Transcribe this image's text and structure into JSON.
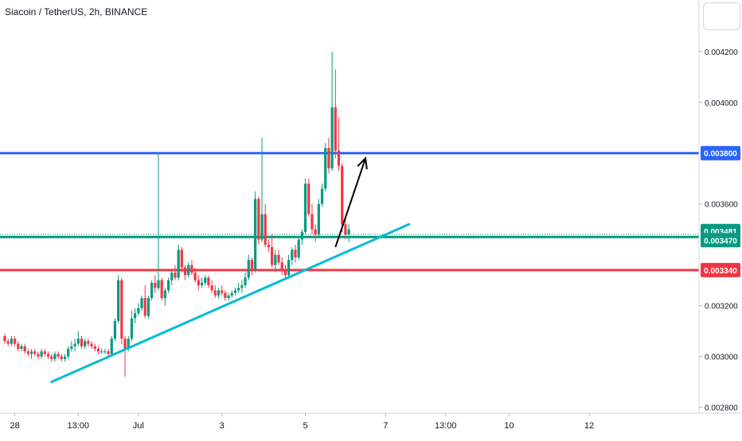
{
  "header": {
    "title": "Siacoin / TetherUS, 2h, BINANCE"
  },
  "chart_data": {
    "type": "candlestick",
    "title": "Siacoin / TetherUS, 2h, BINANCE",
    "ylim": [
      0.00278,
      0.00424
    ],
    "xlim": [
      0,
      210
    ],
    "y_ticks": [
      "0.002800",
      "0.003000",
      "0.003200",
      "0.003600",
      "0.004000",
      "0.004200"
    ],
    "x_ticks": [
      {
        "label": "28",
        "i": 3
      },
      {
        "label": "13:00",
        "i": 22
      },
      {
        "label": "Jul",
        "i": 40
      },
      {
        "label": "3",
        "i": 65
      },
      {
        "label": "5",
        "i": 90
      },
      {
        "label": "7",
        "i": 114
      },
      {
        "label": "13:00",
        "i": 132
      },
      {
        "label": "10",
        "i": 151
      },
      {
        "label": "12",
        "i": 175
      }
    ],
    "horizontal_levels": [
      {
        "name": "resistance",
        "value": 0.0038,
        "label": "0.003800",
        "color": "#2962ff"
      },
      {
        "name": "last-price",
        "value": 0.003481,
        "label": "0.003481",
        "color": "#089981"
      },
      {
        "name": "support-green",
        "value": 0.00347,
        "label": "0.003470",
        "color": "#089981"
      },
      {
        "name": "support-red",
        "value": 0.00334,
        "label": "0.003340",
        "color": "#f23645"
      }
    ],
    "trendline": {
      "from": {
        "i": 14,
        "price": 0.0029
      },
      "to": {
        "i": 121,
        "price": 0.00352
      },
      "color": "#00bcd4"
    },
    "arrow": {
      "from": {
        "i": 99,
        "price": 0.00343
      },
      "to": {
        "i": 108,
        "price": 0.00378
      },
      "color": "#000000"
    },
    "candles": [
      [
        0.00308,
        0.00309,
        0.00305,
        0.00306
      ],
      [
        0.00306,
        0.00307,
        0.00304,
        0.00305
      ],
      [
        0.00305,
        0.00308,
        0.00304,
        0.00307
      ],
      [
        0.00307,
        0.00308,
        0.00304,
        0.00305
      ],
      [
        0.00305,
        0.00306,
        0.00302,
        0.00303
      ],
      [
        0.00303,
        0.00305,
        0.00302,
        0.00304
      ],
      [
        0.00304,
        0.00305,
        0.00301,
        0.00302
      ],
      [
        0.00302,
        0.00303,
        0.003,
        0.00301
      ],
      [
        0.00301,
        0.00303,
        0.00299,
        0.00302
      ],
      [
        0.00302,
        0.00303,
        0.003,
        0.00301
      ],
      [
        0.00301,
        0.00302,
        0.00299,
        0.003
      ],
      [
        0.003,
        0.00303,
        0.00299,
        0.00302
      ],
      [
        0.00302,
        0.00303,
        0.003,
        0.00301
      ],
      [
        0.00301,
        0.00302,
        0.00299,
        0.003
      ],
      [
        0.003,
        0.00301,
        0.00298,
        0.00299
      ],
      [
        0.00299,
        0.00302,
        0.00298,
        0.00301
      ],
      [
        0.00301,
        0.00302,
        0.00299,
        0.003
      ],
      [
        0.003,
        0.00301,
        0.00298,
        0.00299
      ],
      [
        0.00299,
        0.00301,
        0.00298,
        0.003
      ],
      [
        0.003,
        0.00304,
        0.00299,
        0.00303
      ],
      [
        0.00303,
        0.00306,
        0.00302,
        0.00304
      ],
      [
        0.00304,
        0.00307,
        0.00302,
        0.00305
      ],
      [
        0.00305,
        0.0031,
        0.00304,
        0.00307
      ],
      [
        0.00307,
        0.00308,
        0.00303,
        0.00304
      ],
      [
        0.00304,
        0.00307,
        0.00303,
        0.00306
      ],
      [
        0.00306,
        0.00307,
        0.00304,
        0.00305
      ],
      [
        0.00305,
        0.00306,
        0.00303,
        0.00304
      ],
      [
        0.00304,
        0.00305,
        0.00302,
        0.00303
      ],
      [
        0.00303,
        0.00304,
        0.00301,
        0.00302
      ],
      [
        0.00302,
        0.00303,
        0.00301,
        0.00302
      ],
      [
        0.00302,
        0.00303,
        0.00301,
        0.00302
      ],
      [
        0.00302,
        0.00303,
        0.003,
        0.00301
      ],
      [
        0.00301,
        0.00308,
        0.003,
        0.00307
      ],
      [
        0.00307,
        0.00315,
        0.00306,
        0.00314
      ],
      [
        0.00314,
        0.00332,
        0.00313,
        0.0033
      ],
      [
        0.0033,
        0.00331,
        0.00305,
        0.00307
      ],
      [
        0.00307,
        0.00308,
        0.00292,
        0.00303
      ],
      [
        0.00303,
        0.00308,
        0.00302,
        0.00307
      ],
      [
        0.00307,
        0.00318,
        0.00306,
        0.00315
      ],
      [
        0.00315,
        0.00319,
        0.00313,
        0.00317
      ],
      [
        0.00317,
        0.00321,
        0.00316,
        0.00319
      ],
      [
        0.00319,
        0.00324,
        0.00318,
        0.00323
      ],
      [
        0.00323,
        0.00328,
        0.00315,
        0.00316
      ],
      [
        0.00316,
        0.00324,
        0.00315,
        0.00323
      ],
      [
        0.00323,
        0.0033,
        0.00322,
        0.00329
      ],
      [
        0.00329,
        0.00332,
        0.00325,
        0.00327
      ],
      [
        0.00327,
        0.0038,
        0.00326,
        0.0033
      ],
      [
        0.0033,
        0.00331,
        0.00322,
        0.00323
      ],
      [
        0.00323,
        0.00327,
        0.0032,
        0.00326
      ],
      [
        0.00326,
        0.00331,
        0.00325,
        0.0033
      ],
      [
        0.0033,
        0.00334,
        0.00328,
        0.00333
      ],
      [
        0.00333,
        0.00336,
        0.0033,
        0.00331
      ],
      [
        0.00331,
        0.00344,
        0.0033,
        0.00342
      ],
      [
        0.00342,
        0.00343,
        0.00333,
        0.00335
      ],
      [
        0.00335,
        0.00336,
        0.0033,
        0.00332
      ],
      [
        0.00332,
        0.00337,
        0.00331,
        0.00336
      ],
      [
        0.00336,
        0.00338,
        0.00332,
        0.00333
      ],
      [
        0.00333,
        0.00335,
        0.00329,
        0.0033
      ],
      [
        0.0033,
        0.00332,
        0.00326,
        0.00328
      ],
      [
        0.00328,
        0.00331,
        0.00327,
        0.00329
      ],
      [
        0.00329,
        0.00332,
        0.00328,
        0.00331
      ],
      [
        0.00331,
        0.00332,
        0.00327,
        0.00328
      ],
      [
        0.00328,
        0.0033,
        0.00325,
        0.00326
      ],
      [
        0.00326,
        0.00328,
        0.00323,
        0.00324
      ],
      [
        0.00324,
        0.00327,
        0.00323,
        0.00326
      ],
      [
        0.00326,
        0.00328,
        0.00324,
        0.00325
      ],
      [
        0.00325,
        0.00326,
        0.00322,
        0.00323
      ],
      [
        0.00323,
        0.00325,
        0.00322,
        0.00324
      ],
      [
        0.00324,
        0.00326,
        0.00323,
        0.00325
      ],
      [
        0.00325,
        0.00327,
        0.00324,
        0.00326
      ],
      [
        0.00326,
        0.00329,
        0.00325,
        0.00327
      ],
      [
        0.00327,
        0.0033,
        0.00325,
        0.00328
      ],
      [
        0.00328,
        0.00333,
        0.00327,
        0.00331
      ],
      [
        0.00331,
        0.0034,
        0.0033,
        0.00338
      ],
      [
        0.00338,
        0.00339,
        0.00332,
        0.00334
      ],
      [
        0.00334,
        0.00365,
        0.00333,
        0.00362
      ],
      [
        0.00362,
        0.00363,
        0.00344,
        0.00346
      ],
      [
        0.00346,
        0.00386,
        0.00345,
        0.00356
      ],
      [
        0.00356,
        0.0036,
        0.00343,
        0.00344
      ],
      [
        0.00344,
        0.00346,
        0.00341,
        0.00343
      ],
      [
        0.00343,
        0.00348,
        0.00335,
        0.00336
      ],
      [
        0.00336,
        0.00342,
        0.00333,
        0.0034
      ],
      [
        0.0034,
        0.00342,
        0.00336,
        0.00337
      ],
      [
        0.00337,
        0.00339,
        0.00332,
        0.00334
      ],
      [
        0.00334,
        0.00336,
        0.0033,
        0.00332
      ],
      [
        0.00332,
        0.0034,
        0.00331,
        0.00338
      ],
      [
        0.00338,
        0.00343,
        0.00336,
        0.00342
      ],
      [
        0.00342,
        0.00344,
        0.00337,
        0.00339
      ],
      [
        0.00339,
        0.00347,
        0.00338,
        0.00346
      ],
      [
        0.00346,
        0.0035,
        0.00344,
        0.00349
      ],
      [
        0.00349,
        0.0037,
        0.00348,
        0.00368
      ],
      [
        0.00368,
        0.0037,
        0.00355,
        0.00356
      ],
      [
        0.00356,
        0.0036,
        0.00348,
        0.0035
      ],
      [
        0.0035,
        0.00352,
        0.00345,
        0.00348
      ],
      [
        0.00348,
        0.00362,
        0.00347,
        0.0036
      ],
      [
        0.0036,
        0.00368,
        0.00359,
        0.00366
      ],
      [
        0.00366,
        0.00384,
        0.00365,
        0.00382
      ],
      [
        0.00382,
        0.00386,
        0.00372,
        0.00374
      ],
      [
        0.00374,
        0.0042,
        0.00373,
        0.00398
      ],
      [
        0.00398,
        0.00413,
        0.00378,
        0.00381
      ],
      [
        0.00381,
        0.00394,
        0.00373,
        0.00375
      ],
      [
        0.00375,
        0.00376,
        0.00349,
        0.00352
      ],
      [
        0.00352,
        0.00354,
        0.00346,
        0.00348
      ],
      [
        0.00348,
        0.00352,
        0.00345,
        0.0035
      ]
    ]
  }
}
